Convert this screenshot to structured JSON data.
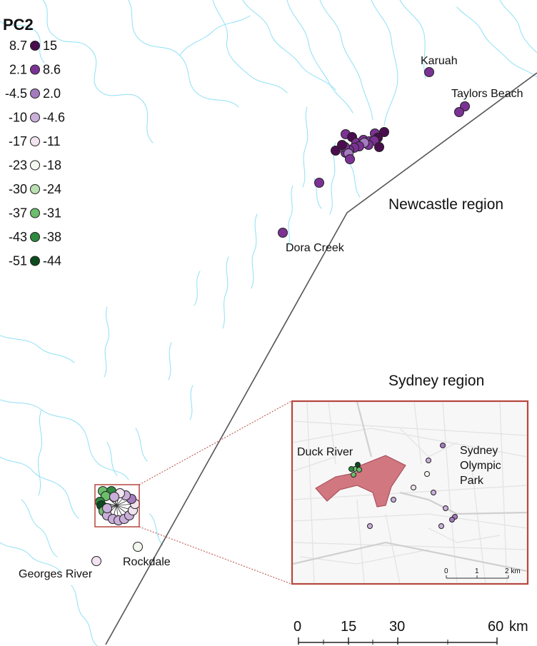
{
  "legend": {
    "title": "PC2",
    "classes": [
      {
        "range": "8.7 – 15",
        "low": "8.7",
        "high": "15",
        "color": "#4a0e4e"
      },
      {
        "range": "2.1 – 8.6",
        "low": "2.1",
        "high": "8.6",
        "color": "#7b3294"
      },
      {
        "range": "-4.5 – 2.0",
        "low": "-4.5",
        "high": "2.0",
        "color": "#a57bc0"
      },
      {
        "range": "-10 – -4.6",
        "low": "-10",
        "high": "-4.6",
        "color": "#c9afd9"
      },
      {
        "range": "-17 – -11",
        "low": "-17",
        "high": "-11",
        "color": "#f1e3f0"
      },
      {
        "range": "-23 – -18",
        "low": "-23",
        "high": "-18",
        "color": "#f3f9ee"
      },
      {
        "range": "-30 – -24",
        "low": "-30",
        "high": "-24",
        "color": "#b8e0b0"
      },
      {
        "range": "-37 – -31",
        "low": "-37",
        "high": "-31",
        "color": "#6cbd6c"
      },
      {
        "range": "-43 – -38",
        "low": "-43",
        "high": "-38",
        "color": "#2e8a3f"
      },
      {
        "range": "-51 – -44",
        "low": "-51",
        "high": "-44",
        "color": "#0b4a1e"
      }
    ]
  },
  "regions": {
    "newcastle": "Newcastle region",
    "sydney": "Sydney region"
  },
  "sites": {
    "karuah": "Karuah",
    "taylors_beach": "Taylors Beach",
    "dora_creek": "Dora Creek",
    "rockdale": "Rockdale",
    "georges_river": "Georges River"
  },
  "inset": {
    "duck_river": "Duck River",
    "sydney_olympic_park_1": "Sydney",
    "sydney_olympic_park_2": "Olympic",
    "sydney_olympic_park_3": "Park",
    "scale_0": "0",
    "scale_1": "1",
    "scale_2": "2 km"
  },
  "scale_bar": {
    "tick_0": "0",
    "tick_15": "15",
    "tick_30": "30",
    "tick_60": "60",
    "unit": "km"
  },
  "colors": {
    "water": "#8fe0f5",
    "coastline": "#555555",
    "inset_frame": "#b5473f",
    "highlight_area": "#c9606b"
  }
}
